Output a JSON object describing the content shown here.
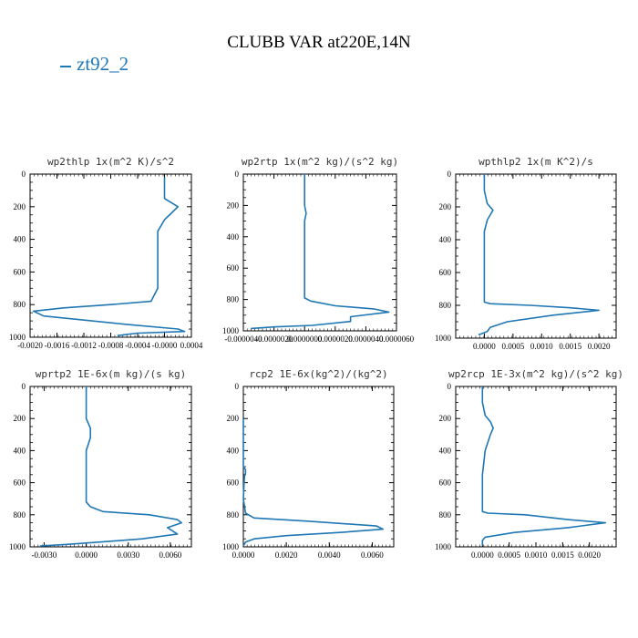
{
  "title": "CLUBB VAR at220E,14N",
  "legend": {
    "label": "zt92_2",
    "color": "#1f77b4"
  },
  "chart_data": [
    {
      "type": "line",
      "title": "wp2thlp   1x(m^2 K)/s^2",
      "xlim": [
        -0.002,
        0.0004
      ],
      "ylim": [
        0,
        1000
      ],
      "y_inverted": true,
      "xticks": [
        -0.002,
        -0.0016,
        -0.0012,
        -0.0008,
        -0.0004,
        0.0,
        0.0004
      ],
      "xtick_labels": [
        "-0.0020",
        "-0.0016",
        "-0.0012",
        "-0.0008",
        "-0.0004",
        "-0.0000",
        "0.0004"
      ],
      "yticks": [
        0,
        200,
        400,
        600,
        800,
        1000
      ],
      "ytick_labels": [
        "0",
        "200",
        "400",
        "600",
        "800",
        "1000"
      ],
      "series": [
        {
          "color": "#1f77b4",
          "x": [
            0.0,
            0.0,
            0.0,
            0.0002,
            0.0001,
            0.0,
            -0.0001,
            -0.0001,
            -0.0001,
            -0.0001,
            -0.0002,
            -0.0008,
            -0.0015,
            -0.00195,
            -0.0018,
            -0.0006,
            0.0002,
            0.0003,
            -0.0004,
            -0.0007
          ],
          "y": [
            20,
            100,
            150,
            200,
            240,
            280,
            350,
            450,
            600,
            700,
            780,
            800,
            820,
            840,
            870,
            920,
            950,
            965,
            975,
            990
          ]
        }
      ]
    },
    {
      "type": "line",
      "title": "wp2rtp   1x(m^2 kg)/(s^2 kg)",
      "xlim": [
        -4e-06,
        6e-06
      ],
      "ylim": [
        0,
        1000
      ],
      "y_inverted": true,
      "xticks": [
        -4e-06,
        -2e-06,
        0.0,
        2e-06,
        4e-06,
        6e-06
      ],
      "xtick_labels": [
        "-0.0000040",
        "-0.0000020",
        "0.0000000",
        "0.0000020",
        "0.0000040",
        "0.0000060"
      ],
      "yticks": [
        0,
        200,
        400,
        600,
        800,
        1000
      ],
      "ytick_labels": [
        "0",
        "200",
        "400",
        "600",
        "800",
        "1000"
      ],
      "series": [
        {
          "color": "#1f77b4",
          "x": [
            0.0,
            0.0,
            0.0,
            1e-07,
            0.0,
            0.0,
            0.0,
            0.0,
            0.0,
            4e-07,
            2e-06,
            4.5e-06,
            5.5e-06,
            3e-06,
            3e-06,
            5e-07,
            -2e-06,
            -3.5e-06
          ],
          "y": [
            0,
            100,
            200,
            250,
            300,
            400,
            600,
            770,
            790,
            810,
            840,
            860,
            880,
            910,
            940,
            965,
            975,
            985
          ]
        }
      ]
    },
    {
      "type": "line",
      "title": "wpthlp2   1x(m K^2)/s",
      "xlim": [
        -0.0005,
        0.0023
      ],
      "ylim": [
        0,
        1000
      ],
      "y_inverted": true,
      "xticks": [
        0.0,
        0.0005,
        0.001,
        0.0015,
        0.002
      ],
      "xtick_labels": [
        "0.0000",
        "0.0005",
        "0.0010",
        "0.0015",
        "0.0020"
      ],
      "yticks": [
        0,
        200,
        400,
        600,
        800,
        1000
      ],
      "ytick_labels": [
        "0",
        "200",
        "400",
        "600",
        "800",
        "1000"
      ],
      "series": [
        {
          "color": "#1f77b4",
          "x": [
            0.0,
            0.0,
            5e-05,
            0.00015,
            5e-05,
            0.0,
            0.0,
            0.0,
            0.0,
            0.0,
            0.0001,
            0.0008,
            0.0015,
            0.002,
            0.0012,
            0.0004,
            0.0001,
            5e-05,
            -0.0001
          ],
          "y": [
            0,
            100,
            180,
            220,
            280,
            350,
            500,
            700,
            760,
            780,
            790,
            800,
            815,
            830,
            860,
            900,
            935,
            960,
            980
          ]
        }
      ]
    },
    {
      "type": "line",
      "title": "wprtp2   1E-6x(m kg)/(s kg)",
      "xlim": [
        -0.004,
        0.0075
      ],
      "ylim": [
        0,
        1000
      ],
      "y_inverted": true,
      "xticks": [
        -0.003,
        0.0,
        0.003,
        0.006
      ],
      "xtick_labels": [
        "-0.0030",
        "0.0000",
        "0.0030",
        "0.0060"
      ],
      "yticks": [
        0,
        200,
        400,
        600,
        800,
        1000
      ],
      "ytick_labels": [
        "0",
        "200",
        "400",
        "600",
        "800",
        "1000"
      ],
      "series": [
        {
          "color": "#1f77b4",
          "x": [
            0.0,
            0.0,
            0.0,
            0.0003,
            0.0003,
            0.0,
            0.0,
            0.0,
            0.0003,
            0.0012,
            0.0045,
            0.0065,
            0.0068,
            0.0058,
            0.0065,
            0.004,
            0.001,
            -0.0015,
            -0.0033
          ],
          "y": [
            0,
            100,
            200,
            260,
            320,
            400,
            600,
            720,
            750,
            780,
            800,
            830,
            850,
            880,
            920,
            950,
            970,
            985,
            995
          ]
        }
      ]
    },
    {
      "type": "line",
      "title": "rcp2   1E-6x(kg^2)/(kg^2)",
      "xlim": [
        0.0,
        0.007
      ],
      "ylim": [
        0,
        1000
      ],
      "y_inverted": true,
      "xticks": [
        0.0,
        0.002,
        0.004,
        0.006
      ],
      "xtick_labels": [
        "0.0000",
        "0.0020",
        "0.0040",
        "0.0060"
      ],
      "yticks": [
        0,
        200,
        400,
        600,
        800,
        1000
      ],
      "ytick_labels": [
        "0",
        "200",
        "400",
        "600",
        "800",
        "1000"
      ],
      "series": [
        {
          "color": "#1f77b4",
          "x": [
            0.0,
            0.0,
            0.0,
            0.0,
            0.0001,
            0.0001,
            5e-05,
            0.0,
            0.0001,
            0.0005,
            0.003,
            0.0062,
            0.0065,
            0.0045,
            0.002,
            0.0005,
            0.0001,
            0.0
          ],
          "y": [
            200,
            250,
            300,
            500,
            520,
            540,
            560,
            700,
            790,
            820,
            840,
            870,
            890,
            910,
            930,
            950,
            970,
            995
          ]
        }
      ]
    },
    {
      "type": "line",
      "title": "wp2rcp   1E-3x(m^2 kg)/(s^2 kg)",
      "xlim": [
        -0.0005,
        0.0025
      ],
      "ylim": [
        0,
        1000
      ],
      "y_inverted": true,
      "xticks": [
        0.0,
        0.0005,
        0.001,
        0.0015,
        0.002
      ],
      "xtick_labels": [
        "0.0000",
        "0.0005",
        "0.0010",
        "0.0015",
        "0.0020"
      ],
      "yticks": [
        0,
        200,
        400,
        600,
        800,
        1000
      ],
      "ytick_labels": [
        "0",
        "200",
        "400",
        "600",
        "800",
        "1000"
      ],
      "series": [
        {
          "color": "#1f77b4",
          "x": [
            0.0,
            0.0,
            5e-05,
            0.00015,
            0.0002,
            0.00015,
            5e-05,
            0.0,
            0.0,
            0.0,
            0.0001,
            0.0008,
            0.0016,
            0.0023,
            0.0016,
            0.0006,
            5e-05,
            0.0,
            0.0
          ],
          "y": [
            0,
            100,
            180,
            220,
            260,
            300,
            400,
            550,
            700,
            780,
            790,
            800,
            830,
            850,
            880,
            910,
            940,
            960,
            990
          ]
        }
      ]
    }
  ]
}
